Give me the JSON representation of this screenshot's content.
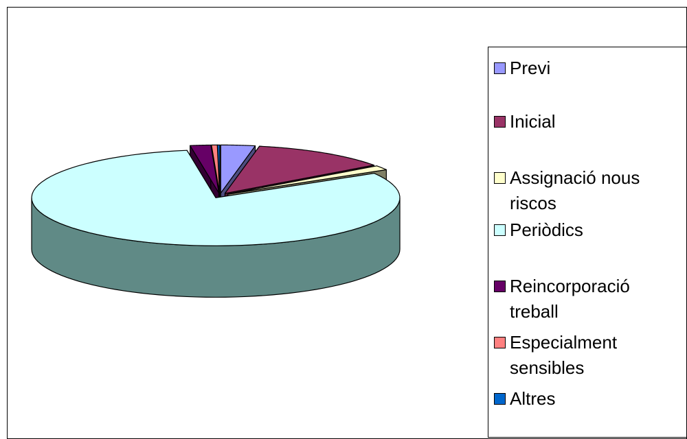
{
  "chart_data": {
    "type": "pie3d",
    "categories": [
      "Previ",
      "Inicial",
      "Assignació nous riscos",
      "Periòdics",
      "Reincorporació treball",
      "Especialment sensibles",
      "Altres"
    ],
    "values": [
      3,
      12,
      1.5,
      81,
      1.8,
      0.5,
      0.2
    ],
    "colors": [
      "#9999ff",
      "#993366",
      "#ffffcc",
      "#ccffff",
      "#660066",
      "#ff8080",
      "#0066cc"
    ],
    "legend": "right"
  }
}
